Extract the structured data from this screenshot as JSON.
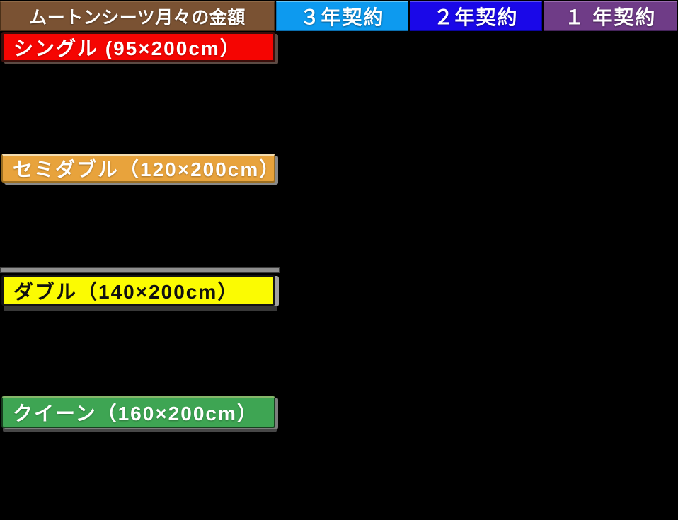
{
  "page": {
    "background_color": "#000000",
    "description_title": "ムートンシーツ月々の金額"
  },
  "header": {
    "title": {
      "label": "ムートンシーツ月々の金額",
      "bg": "#7A5233",
      "text_color": "#FFFFFF"
    },
    "columns": [
      {
        "label": "３年契約",
        "bg": "#0D9AEF",
        "text_color": "#FFFFFF"
      },
      {
        "label": "２年契約",
        "bg": "#1A08E8",
        "text_color": "#FFFFFF"
      },
      {
        "label": "１ 年契約",
        "bg": "#6F3C87",
        "text_color": "#FFFFFF"
      }
    ]
  },
  "rows": [
    {
      "label": "シングル (95×200cm）",
      "bg": "#F50502",
      "text_color": "#FFFFFF"
    },
    {
      "label": "セミダブル（120×200cm）",
      "bg": "#E8A33C",
      "text_color": "#FFFFFF"
    },
    {
      "label": "ダブル（140×200cm）",
      "bg": "#FBFB02",
      "text_color": "#111111"
    },
    {
      "label": "クイーン（160×200cm）",
      "bg": "#3EA553",
      "text_color": "#FFFFFF"
    }
  ],
  "chart_data": {
    "type": "table",
    "title": "ムートンシーツ月々の金額",
    "columns": [
      "ムートンシーツ月々の金額",
      "３年契約",
      "２年契約",
      "１ 年契約"
    ],
    "rows": [
      {
        "label": "シングル (95×200cm）",
        "values": [
          "",
          "",
          ""
        ]
      },
      {
        "label": "セミダブル（120×200cm）",
        "values": [
          "",
          "",
          ""
        ]
      },
      {
        "label": "ダブル（140×200cm）",
        "values": [
          "",
          "",
          ""
        ]
      },
      {
        "label": "クイーン（160×200cm）",
        "values": [
          "",
          "",
          ""
        ]
      }
    ],
    "layout": {
      "grid": "off",
      "note_colors": {
        "header_title": "#7A5233",
        "col_3yr": "#0D9AEF",
        "col_2yr": "#1A08E8",
        "col_1yr": "#6F3C87",
        "row_single": "#F50502",
        "row_semidouble": "#E8A33C",
        "row_double": "#FBFB02",
        "row_queen": "#3EA553"
      }
    }
  }
}
